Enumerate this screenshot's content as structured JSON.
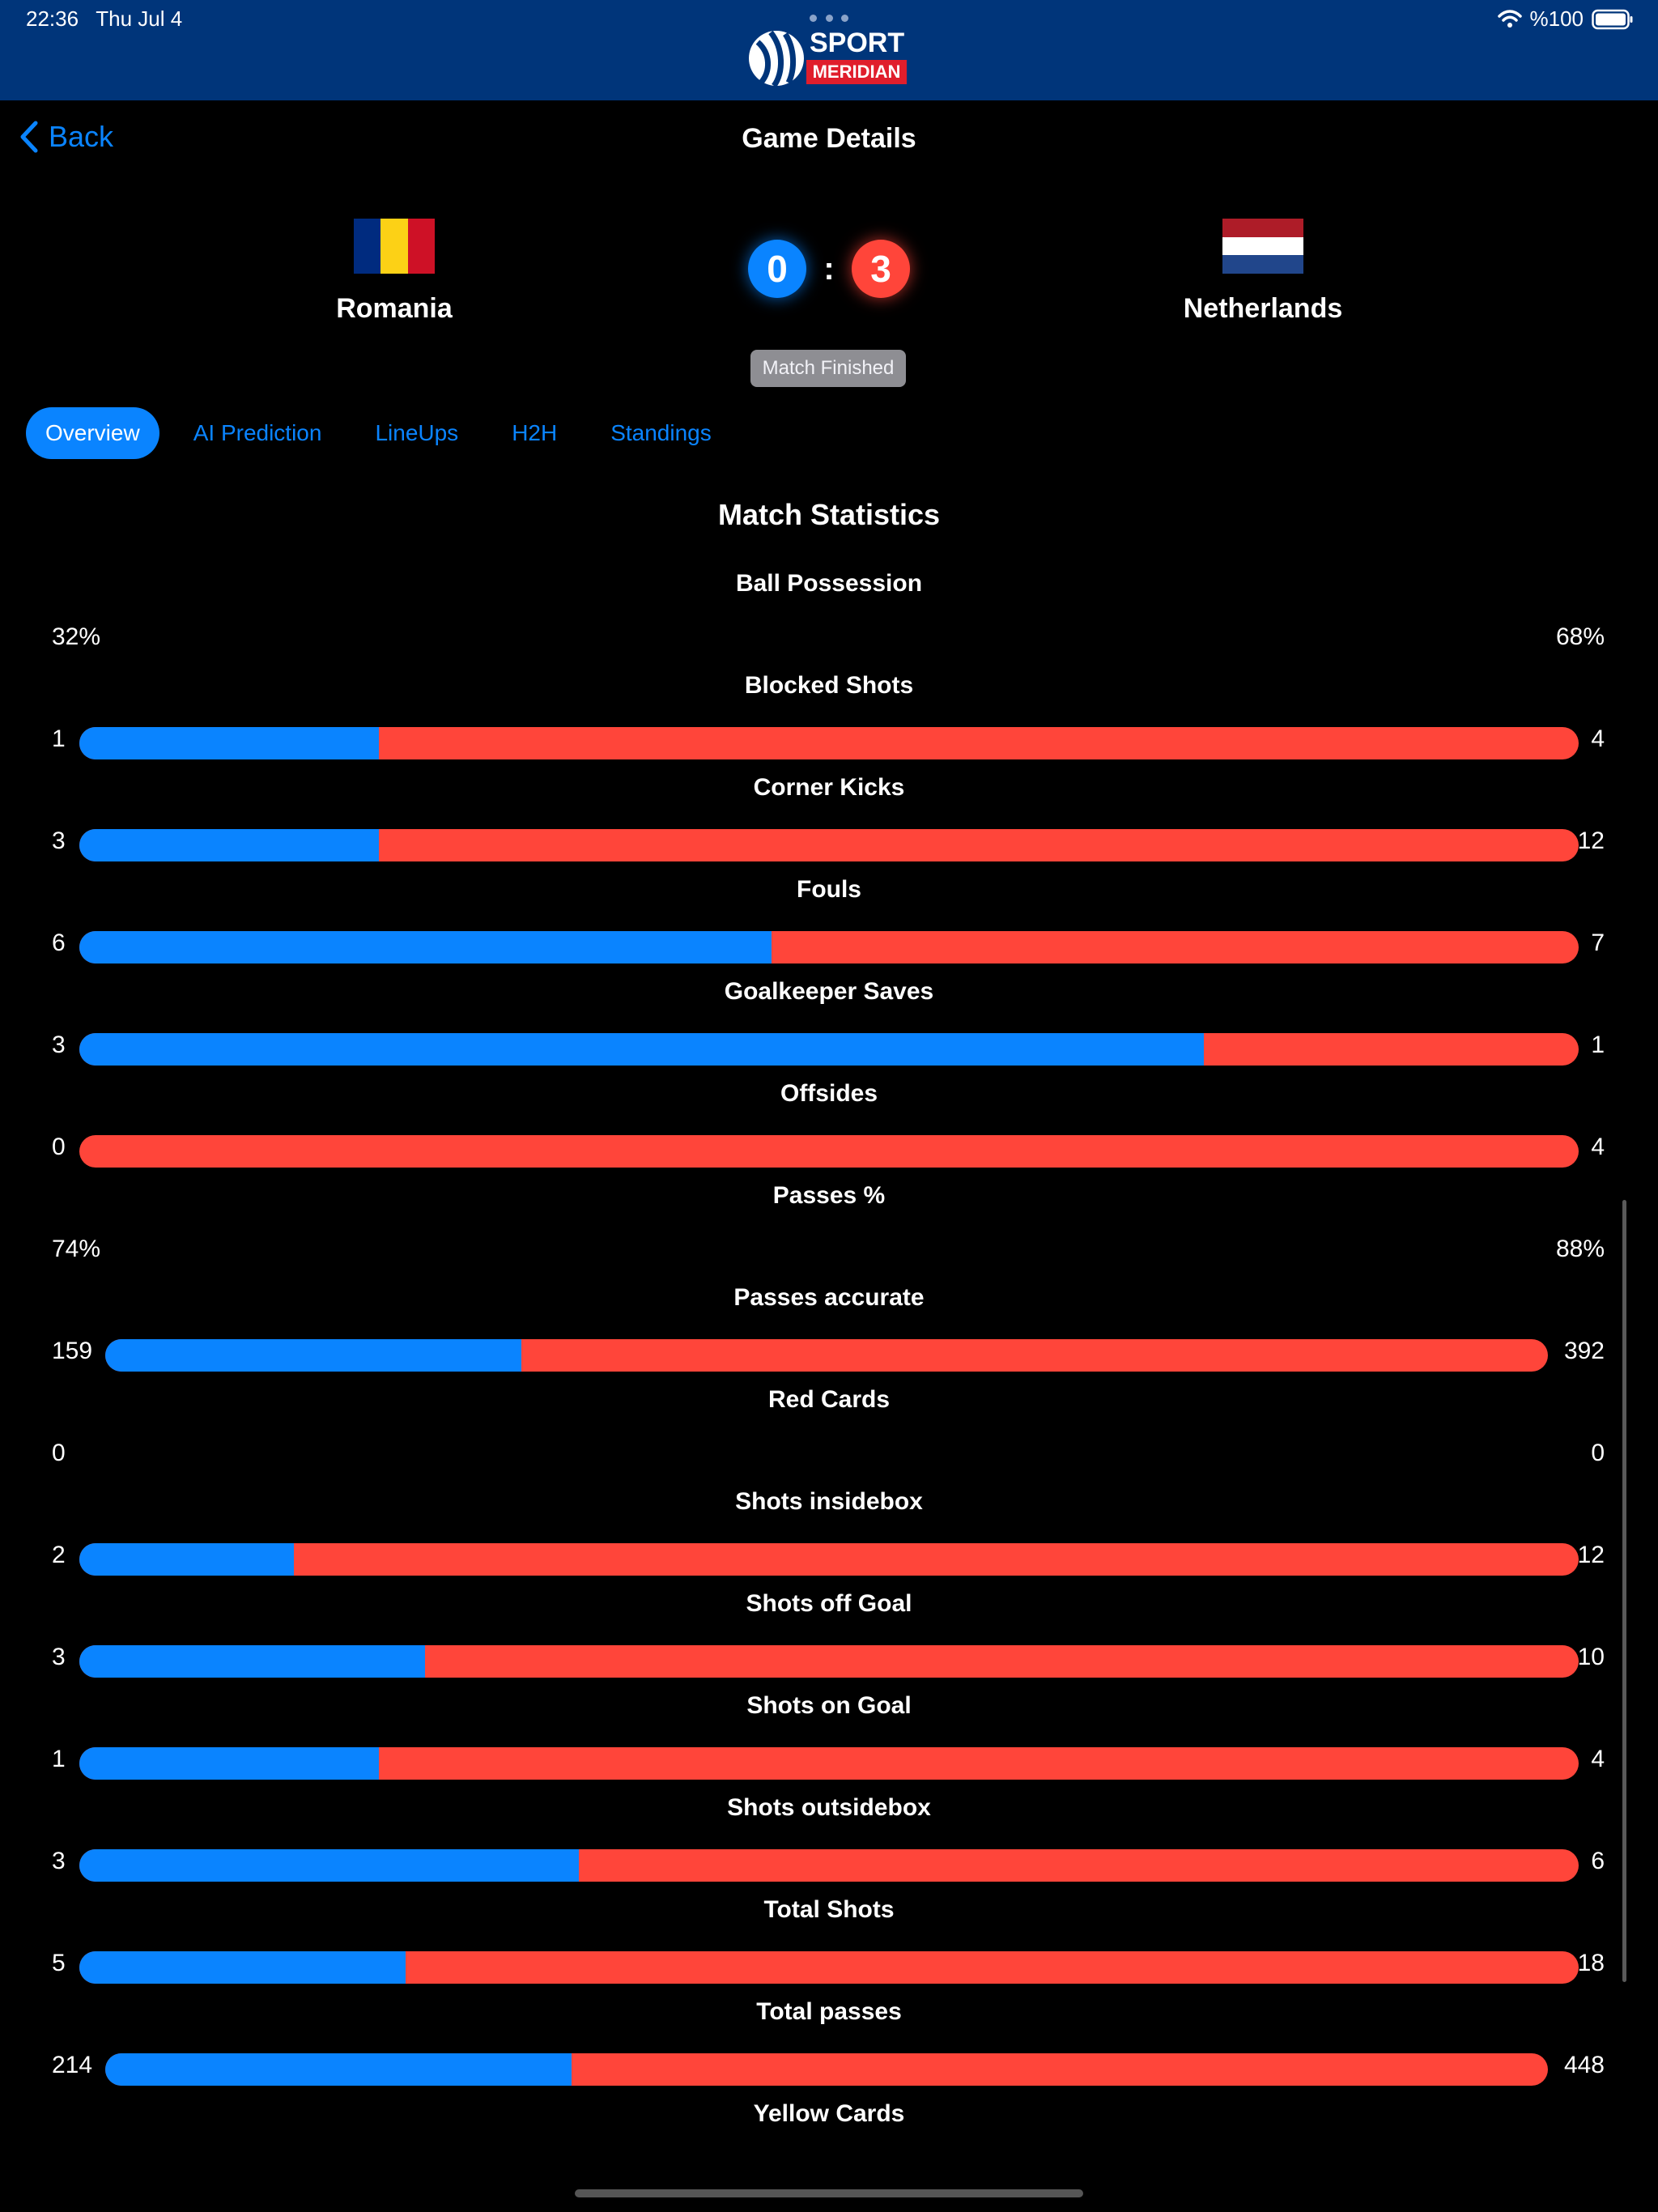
{
  "status_bar": {
    "time": "22:36",
    "date": "Thu Jul 4",
    "battery": "%100",
    "wifi_icon": "wifi-icon",
    "battery_icon": "battery-icon"
  },
  "logo": {
    "top": "SPORT",
    "bottom": "MERIDIAN"
  },
  "nav": {
    "back_label": "Back",
    "title": "Game Details"
  },
  "match": {
    "home_team": "Romania",
    "away_team": "Netherlands",
    "home_score": "0",
    "away_score": "3",
    "separator": ":",
    "status": "Match Finished",
    "home_flag_colors": [
      "#002b7f",
      "#fcd116",
      "#ce1126"
    ],
    "away_flag_colors": [
      "#ae1c28",
      "#ffffff",
      "#21468b"
    ]
  },
  "tabs": [
    {
      "label": "Overview",
      "active": true
    },
    {
      "label": "AI Prediction",
      "active": false
    },
    {
      "label": "LineUps",
      "active": false
    },
    {
      "label": "H2H",
      "active": false
    },
    {
      "label": "Standings",
      "active": false
    }
  ],
  "section_title": "Match Statistics",
  "colors": {
    "home": "#0a84ff",
    "away": "#ff453a",
    "header": "#00357a"
  },
  "stats": [
    {
      "name": "Ball Possession",
      "home": "32%",
      "away": "68%",
      "bar": false
    },
    {
      "name": "Blocked Shots",
      "home": "1",
      "away": "4",
      "bar": true,
      "home_share": 0.2
    },
    {
      "name": "Corner Kicks",
      "home": "3",
      "away": "12",
      "bar": true,
      "home_share": 0.2
    },
    {
      "name": "Fouls",
      "home": "6",
      "away": "7",
      "bar": true,
      "home_share": 0.4615
    },
    {
      "name": "Goalkeeper Saves",
      "home": "3",
      "away": "1",
      "bar": true,
      "home_share": 0.75
    },
    {
      "name": "Offsides",
      "home": "0",
      "away": "4",
      "bar": true,
      "home_share": 0
    },
    {
      "name": "Passes %",
      "home": "74%",
      "away": "88%",
      "bar": false
    },
    {
      "name": "Passes accurate",
      "home": "159",
      "away": "392",
      "bar": true,
      "home_share": 0.2886
    },
    {
      "name": "Red Cards",
      "home": "0",
      "away": "0",
      "bar": false
    },
    {
      "name": "Shots insidebox",
      "home": "2",
      "away": "12",
      "bar": true,
      "home_share": 0.1429
    },
    {
      "name": "Shots off Goal",
      "home": "3",
      "away": "10",
      "bar": true,
      "home_share": 0.2308
    },
    {
      "name": "Shots on Goal",
      "home": "1",
      "away": "4",
      "bar": true,
      "home_share": 0.2
    },
    {
      "name": "Shots outsidebox",
      "home": "3",
      "away": "6",
      "bar": true,
      "home_share": 0.3333
    },
    {
      "name": "Total Shots",
      "home": "5",
      "away": "18",
      "bar": true,
      "home_share": 0.2174
    },
    {
      "name": "Total passes",
      "home": "214",
      "away": "448",
      "bar": true,
      "home_share": 0.3233
    },
    {
      "name": "Yellow Cards",
      "home": "",
      "away": "",
      "bar": false
    }
  ]
}
